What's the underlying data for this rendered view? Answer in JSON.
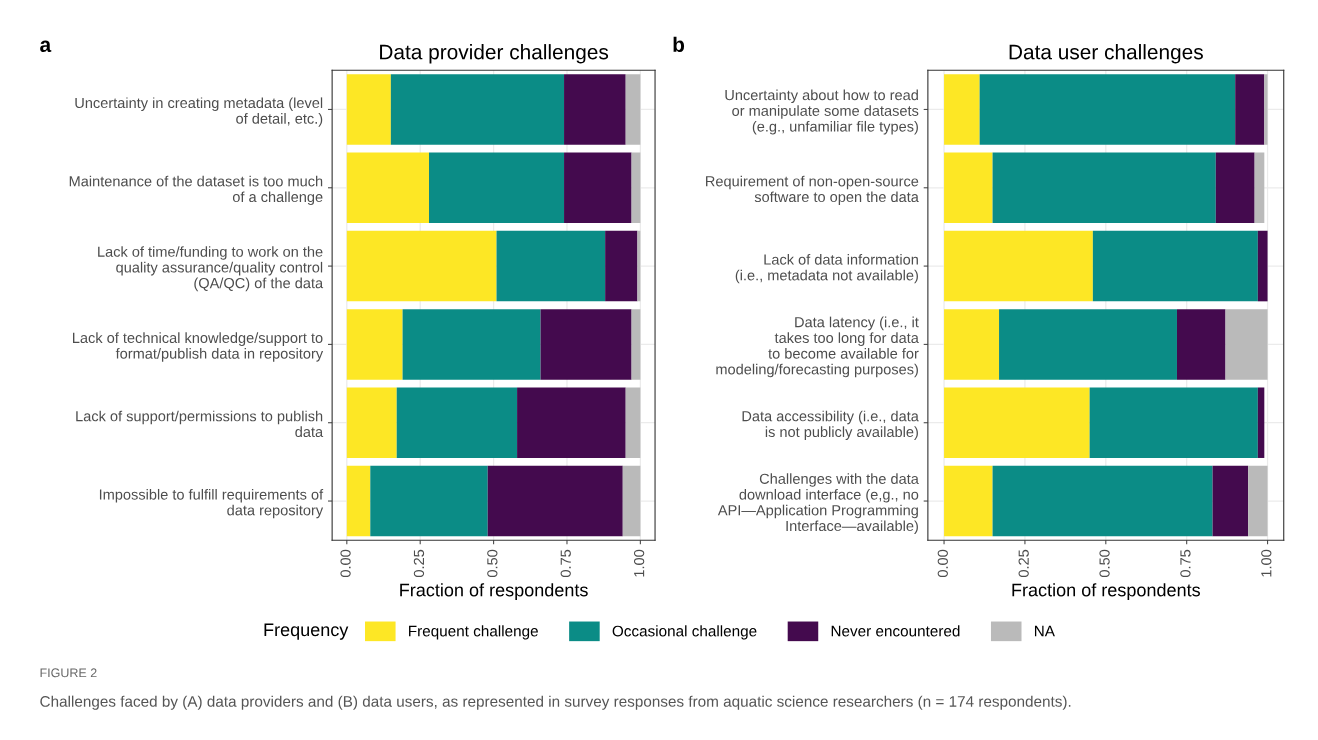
{
  "chart_data": [
    {
      "type": "bar",
      "orientation": "horizontal",
      "stacked": true,
      "title": "Data provider challenges",
      "xlabel": "Fraction of respondents",
      "legend_title": "Frequency",
      "legend": "bottom",
      "grid": true,
      "annotations": [
        "a",
        "FIGURE 2",
        "Challenges faced by (A) data providers and (B) data users, as represented in survey responses from aquatic science researchers (n = 174 respondents)."
      ],
      "categories": [
        "Uncertainty in creating metadata (level\nof detail, etc.)",
        "Maintenance of the dataset is too much\nof a challenge",
        "Lack of time/funding to work on the\nquality assurance/quality control\n(QA/QC) of the data",
        "Lack of technical knowledge/support to\nformat/publish data in repository",
        "Lack of support/permissions to publish\ndata",
        "Impossible to fulfill requirements of\ndata repository"
      ],
      "xlim": [
        -0.05,
        1.05
      ],
      "xticks": [
        {
          "value": 0,
          "label": "0.00"
        },
        {
          "value": 0.25,
          "label": "0.25"
        },
        {
          "value": 0.5,
          "label": "0.50"
        },
        {
          "value": 0.75,
          "label": "0.75"
        },
        {
          "value": 1,
          "label": "1.00"
        }
      ],
      "series": [
        {
          "name": "Frequent challenge",
          "color": "#fde725",
          "values": [
            0.15,
            0.28,
            0.51,
            0.19,
            0.17,
            0.08
          ]
        },
        {
          "name": "Occasional challenge",
          "color": "#0b8c86",
          "values": [
            0.59,
            0.46,
            0.37,
            0.47,
            0.41,
            0.4
          ]
        },
        {
          "name": "Never encountered",
          "color": "#440a4e",
          "values": [
            0.21,
            0.23,
            0.11,
            0.31,
            0.37,
            0.46
          ]
        },
        {
          "name": "NA",
          "color": "#bababa",
          "values": [
            0.05,
            0.03,
            0.01,
            0.03,
            0.05,
            0.06
          ]
        }
      ]
    },
    {
      "type": "bar",
      "orientation": "horizontal",
      "stacked": true,
      "title": "Data user challenges",
      "xlabel": "Fraction of respondents",
      "grid": true,
      "annotations": [
        "b"
      ],
      "categories": [
        "Uncertainty about how to read\nor manipulate some datasets\n(e.g., unfamiliar file types)",
        "Requirement of non-open-source\nsoftware to open the data",
        "Lack of data information\n(i.e., metadata not available)",
        "Data latency (i.e., it\ntakes too long for data\nto become available for\nmodeling/forecasting purposes)",
        "Data accessibility (i.e., data\nis not publicly available)",
        "Challenges with the data\ndownload interface (e,g., no\nAPI—Application Programming\nInterface—available)"
      ],
      "xlim": [
        -0.05,
        1.05
      ],
      "xticks": [
        {
          "value": 0,
          "label": "0.00"
        },
        {
          "value": 0.25,
          "label": "0.25"
        },
        {
          "value": 0.5,
          "label": "0.50"
        },
        {
          "value": 0.75,
          "label": "0.75"
        },
        {
          "value": 1,
          "label": "1.00"
        }
      ],
      "series": [
        {
          "color": "#fde725",
          "values": [
            0.11,
            0.15,
            0.46,
            0.17,
            0.45,
            0.15
          ]
        },
        {
          "color": "#0b8c86",
          "values": [
            0.79,
            0.69,
            0.51,
            0.55,
            0.52,
            0.68
          ]
        },
        {
          "color": "#440a4e",
          "values": [
            0.09,
            0.12,
            0.03,
            0.15,
            0.02,
            0.11
          ]
        },
        {
          "color": "#bababa",
          "values": [
            0.01,
            0.03,
            0.0,
            0.13,
            0.0,
            0.06
          ]
        }
      ]
    }
  ]
}
